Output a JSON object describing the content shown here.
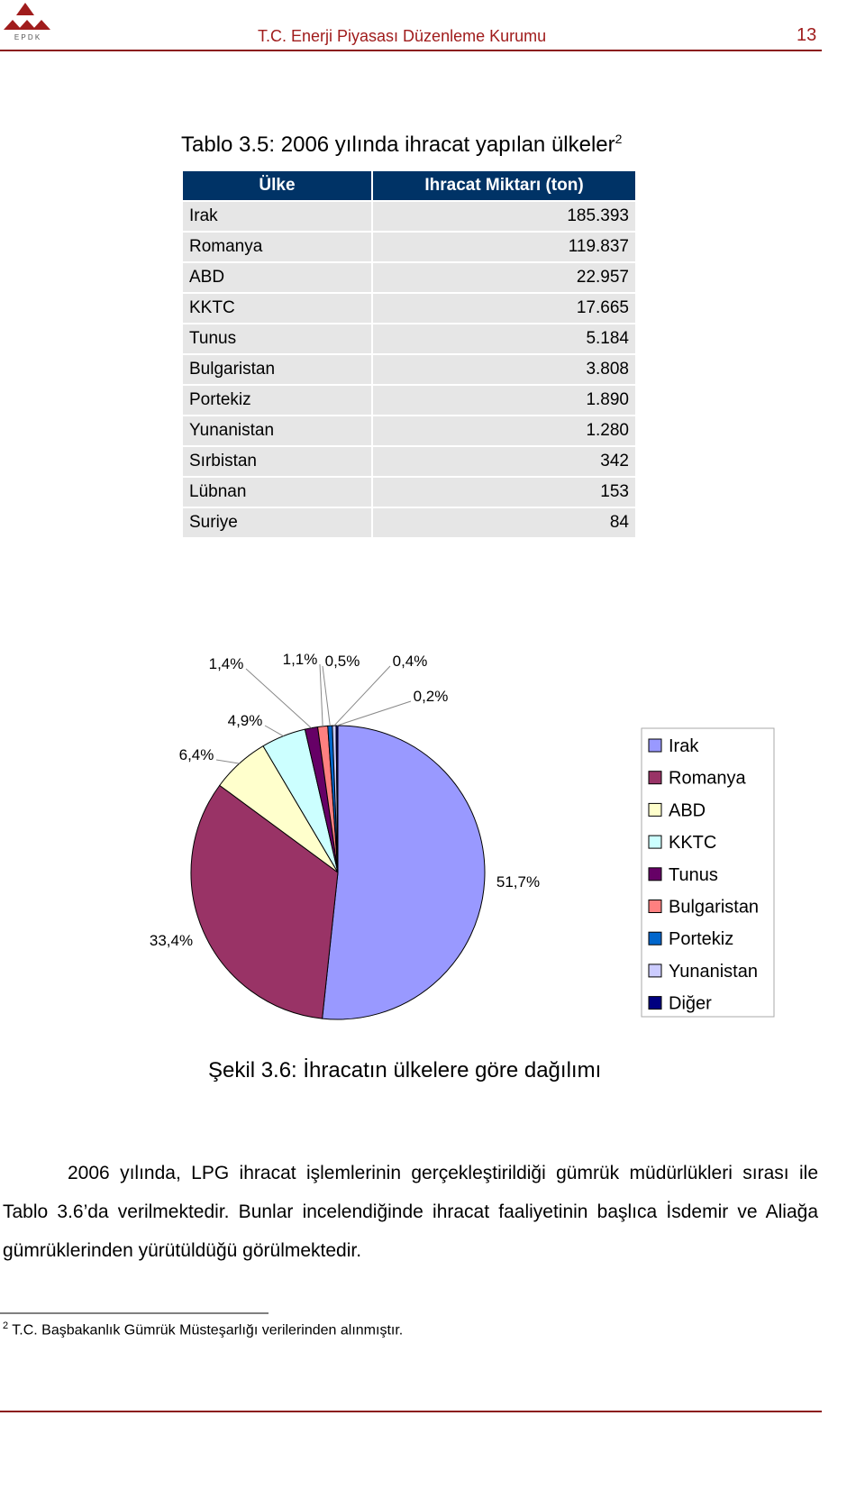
{
  "header": {
    "logo_letters": "E P D K",
    "organization": "T.C. Enerji Piyasası Düzenleme Kurumu",
    "page_number": "13"
  },
  "table": {
    "title": "Tablo 3.5: 2006 yılında ihracat yapılan ülkeler",
    "title_note": "2",
    "columns": [
      "Ülke",
      "Ihracat Miktarı (ton)"
    ],
    "rows": [
      [
        "Irak",
        "185.393"
      ],
      [
        "Romanya",
        "119.837"
      ],
      [
        "ABD",
        "22.957"
      ],
      [
        "KKTC",
        "17.665"
      ],
      [
        "Tunus",
        "5.184"
      ],
      [
        "Bulgaristan",
        "3.808"
      ],
      [
        "Portekiz",
        "1.890"
      ],
      [
        "Yunanistan",
        "1.280"
      ],
      [
        "Sırbistan",
        "342"
      ],
      [
        "Lübnan",
        "153"
      ],
      [
        "Suriye",
        "84"
      ]
    ]
  },
  "chart_data": {
    "type": "pie",
    "categories": [
      "Irak",
      "Romanya",
      "ABD",
      "KKTC",
      "Tunus",
      "Bulgaristan",
      "Portekiz",
      "Yunanistan",
      "Diğer"
    ],
    "values": [
      51.7,
      33.4,
      6.4,
      4.9,
      1.4,
      1.1,
      0.5,
      0.4,
      0.2
    ],
    "value_labels": [
      "51,7%",
      "33,4%",
      "6,4%",
      "4,9%",
      "1,4%",
      "1,1%",
      "0,5%",
      "0,4%",
      "0,2%"
    ],
    "colors": [
      "#9999ff",
      "#993366",
      "#ffffcc",
      "#ccffff",
      "#660066",
      "#ff8080",
      "#0066cc",
      "#ccccff",
      "#000080"
    ],
    "legend": "right"
  },
  "caption": "Şekil 3.6: İhracatın ülkelere göre dağılımı",
  "body": "2006 yılında, LPG ihracat işlemlerinin gerçekleştirildiği gümrük müdürlükleri sırası ile Tablo 3.6’da verilmektedir. Bunlar incelendiğinde ihracat faaliyetinin başlıca İsdemir ve Aliağa gümrüklerinden yürütüldüğü görülmektedir.",
  "footnote": {
    "marker": "2",
    "text": "T.C. Başbakanlık Gümrük Müsteşarlığı verilerinden alınmıştır."
  }
}
